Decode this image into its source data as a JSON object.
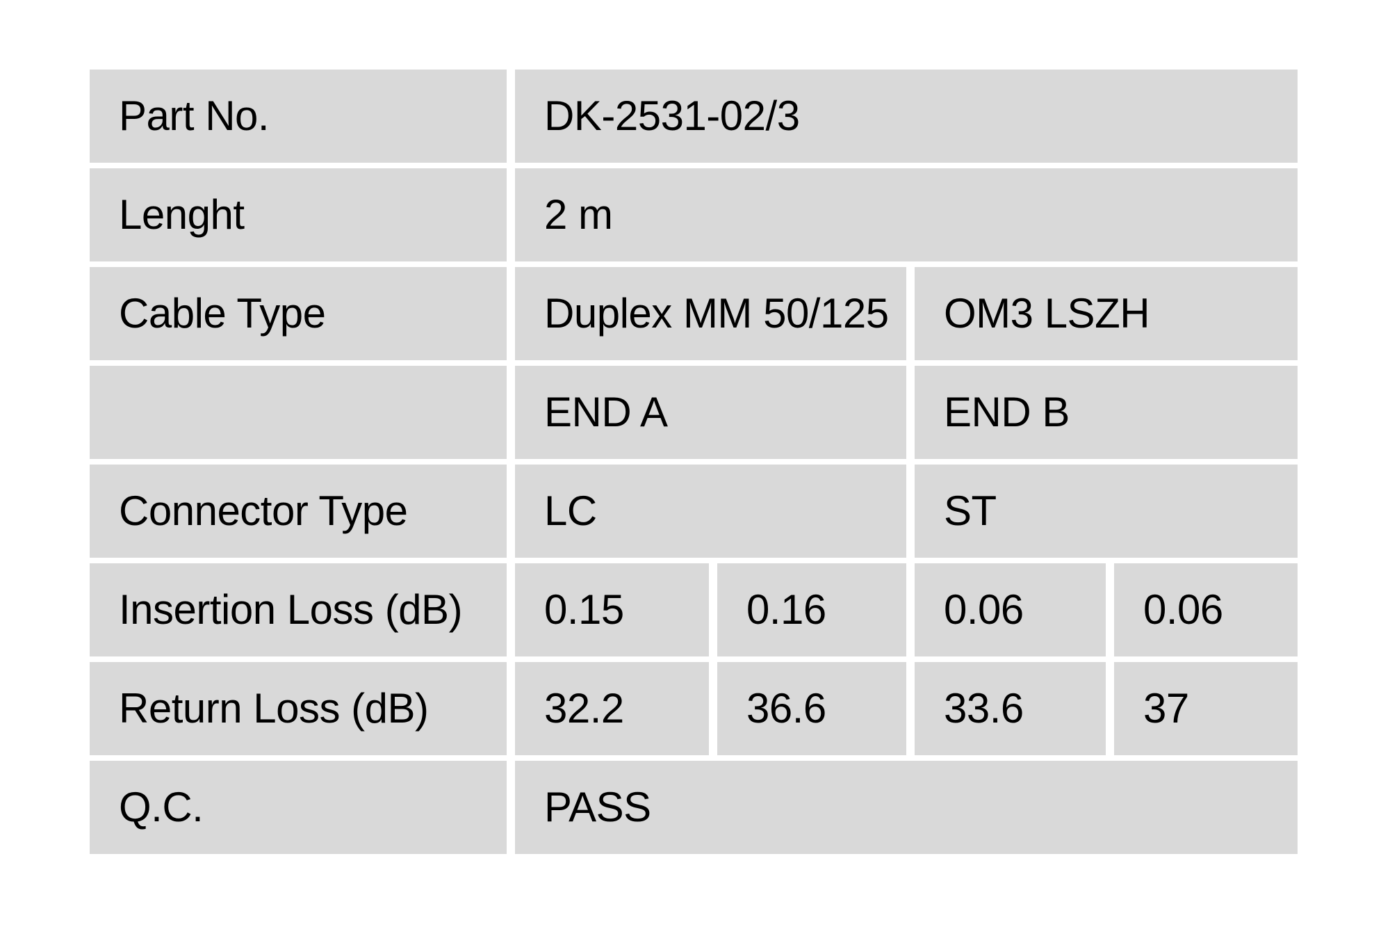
{
  "page": {
    "background": "#ffffff"
  },
  "table": {
    "cell_background": "#d9d9d9",
    "text_color": "#000000",
    "part_no": {
      "label": "Part No.",
      "value": "DK-2531-02/3"
    },
    "length": {
      "label": "Lenght",
      "value": "2 m"
    },
    "cable_type": {
      "label": "Cable Type",
      "end_a": "Duplex MM 50/125",
      "end_b": "OM3 LSZH"
    },
    "ends_header": {
      "label": "",
      "end_a": "END A",
      "end_b": "END B"
    },
    "connector_type": {
      "label": "Connector Type",
      "end_a": "LC",
      "end_b": "ST"
    },
    "insertion_loss": {
      "label": "Insertion Loss (dB)",
      "values": [
        "0.15",
        "0.16",
        "0.06",
        "0.06"
      ]
    },
    "return_loss": {
      "label": "Return Loss (dB)",
      "values": [
        "32.2",
        "36.6",
        "33.6",
        "37"
      ]
    },
    "qc": {
      "label": "Q.C.",
      "value": "PASS"
    }
  }
}
